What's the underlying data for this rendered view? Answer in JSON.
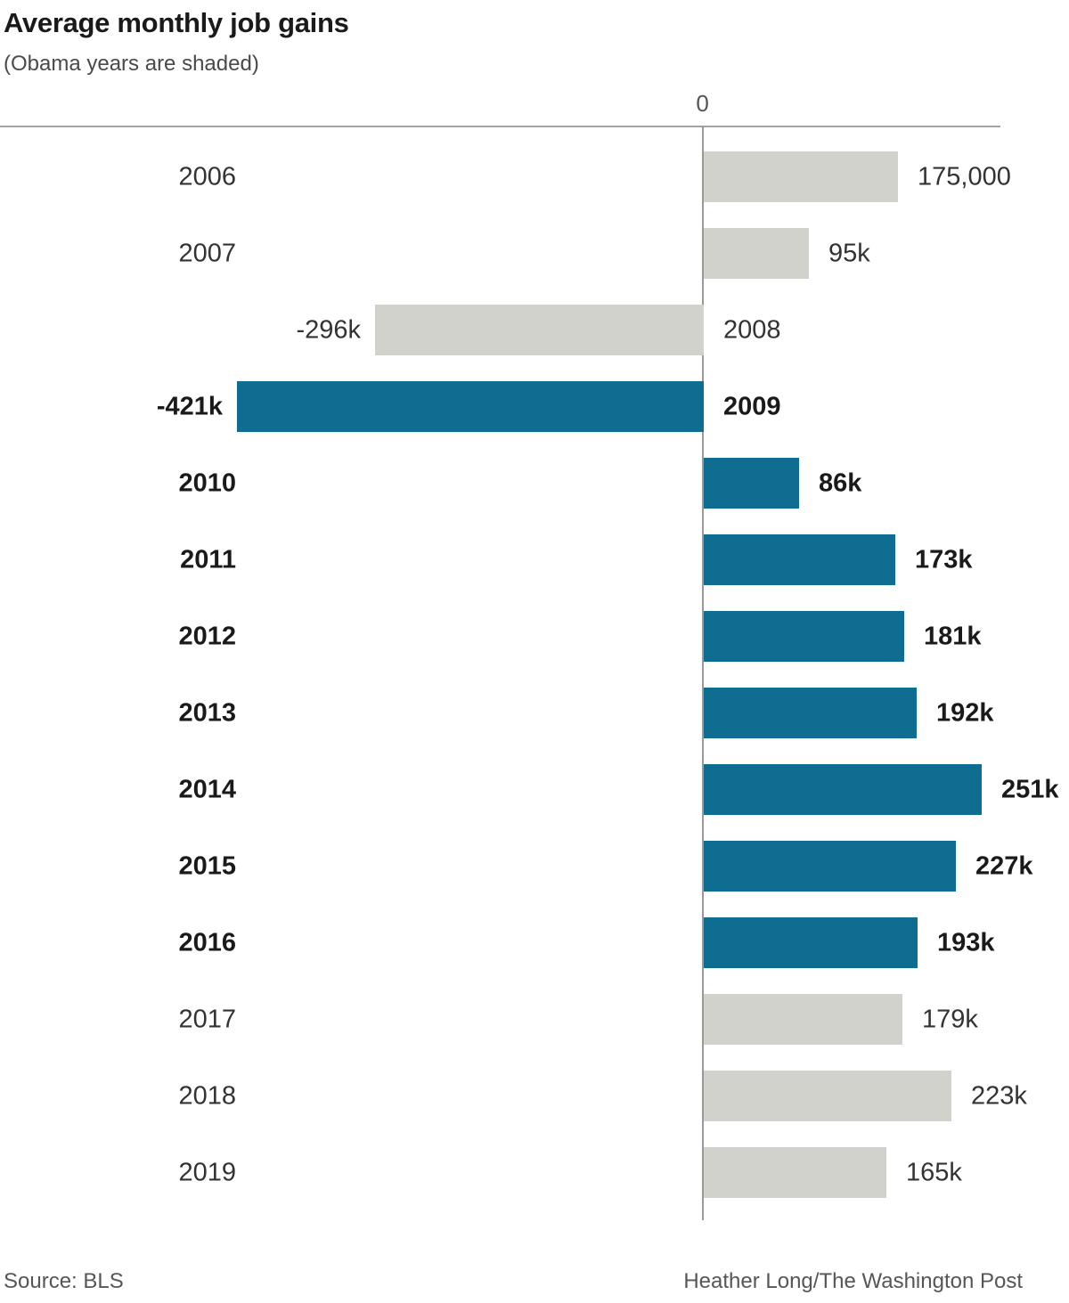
{
  "header": {
    "title": "Average monthly job gains",
    "subtitle": "(Obama years are shaded)"
  },
  "axis": {
    "zero_label": "0"
  },
  "footer": {
    "source": "Source: BLS",
    "credit": "Heather Long/The Washington Post"
  },
  "colors": {
    "obama_bar": "#0f6d92",
    "other_bar": "#d2d2cd",
    "axis_line": "#999999"
  },
  "chart_data": {
    "type": "bar",
    "orientation": "horizontal",
    "title": "Average monthly job gains",
    "subtitle": "(Obama years are shaded)",
    "unit": "average monthly job gains (jobs)",
    "categories": [
      "2006",
      "2007",
      "2008",
      "2009",
      "2010",
      "2011",
      "2012",
      "2013",
      "2014",
      "2015",
      "2016",
      "2017",
      "2018",
      "2019"
    ],
    "values": [
      175000,
      95000,
      -296000,
      -421000,
      86000,
      173000,
      181000,
      192000,
      251000,
      227000,
      193000,
      179000,
      223000,
      165000
    ],
    "value_labels": [
      "175,000",
      "95k",
      "-296k",
      "-421k",
      "86k",
      "173k",
      "181k",
      "192k",
      "251k",
      "227k",
      "193k",
      "179k",
      "223k",
      "165k"
    ],
    "shaded_obama_years": [
      "2009",
      "2010",
      "2011",
      "2012",
      "2013",
      "2014",
      "2015",
      "2016"
    ],
    "xlim": [
      -421000,
      251000
    ],
    "grid": false,
    "legend": "none",
    "source": "BLS"
  }
}
